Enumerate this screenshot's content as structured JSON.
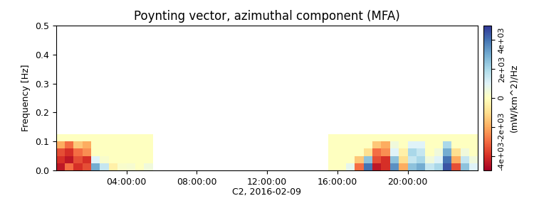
{
  "chart_data": {
    "type": "heatmap",
    "title": "Poynting vector, azimuthal component (MFA)",
    "x_label": "C2, 2016-02-09",
    "y_label": "Frequency [Hz]",
    "colorbar_label": "(mW/km^2)/Hz",
    "x_edges": [
      0,
      0.5,
      1,
      1.5,
      2,
      2.5,
      3,
      3.5,
      4,
      4.5,
      5,
      5.5,
      6,
      6.5,
      7,
      7.5,
      8,
      8.5,
      9,
      9.5,
      10,
      10.5,
      11,
      11.5,
      12,
      12.5,
      13,
      13.5,
      14,
      14.5,
      15,
      15.5,
      16,
      16.5,
      17,
      17.5,
      18,
      18.5,
      19,
      19.5,
      20,
      20.5,
      21,
      21.5,
      22,
      22.5,
      23,
      23.5,
      24
    ],
    "y_edges": [
      0,
      0.025,
      0.05,
      0.075,
      0.1,
      0.125
    ],
    "cells": [
      [
        -4500,
        -3000,
        -4000,
        -3500,
        3000,
        1500,
        -500,
        200,
        300,
        0,
        500,
        null,
        null,
        null,
        null,
        null,
        null,
        null,
        null,
        null,
        null,
        null,
        null,
        null,
        null,
        null,
        null,
        null,
        null,
        null,
        null,
        0,
        0,
        800,
        -3000,
        4000,
        -4500,
        -4000,
        3500,
        -2000,
        2500,
        3000,
        1500,
        2000,
        4500,
        -3500,
        2500,
        1000
      ],
      [
        -4000,
        -4500,
        -3500,
        -4000,
        1000,
        200,
        0,
        0,
        0,
        0,
        0,
        null,
        null,
        null,
        null,
        null,
        null,
        null,
        null,
        null,
        null,
        null,
        null,
        null,
        null,
        null,
        null,
        null,
        null,
        null,
        null,
        0,
        0,
        0,
        -1500,
        2500,
        -3500,
        -4000,
        2500,
        -1000,
        1500,
        2000,
        500,
        1000,
        4000,
        -2000,
        1500,
        500
      ],
      [
        -3500,
        -4000,
        -3000,
        -2500,
        0,
        0,
        0,
        0,
        0,
        0,
        0,
        null,
        null,
        null,
        null,
        null,
        null,
        null,
        null,
        null,
        null,
        null,
        null,
        null,
        null,
        null,
        null,
        null,
        null,
        null,
        null,
        0,
        0,
        0,
        0,
        -1000,
        -3000,
        -2500,
        1000,
        -500,
        2000,
        1500,
        0,
        500,
        3000,
        -1000,
        500,
        0
      ],
      [
        -2000,
        -3000,
        -1500,
        -2000,
        0,
        0,
        0,
        0,
        0,
        0,
        0,
        null,
        null,
        null,
        null,
        null,
        null,
        null,
        null,
        null,
        null,
        null,
        null,
        null,
        null,
        null,
        null,
        null,
        null,
        null,
        null,
        0,
        0,
        0,
        0,
        0,
        -1500,
        -2000,
        500,
        0,
        1000,
        1000,
        0,
        0,
        2000,
        0,
        0,
        0
      ],
      [
        0,
        0,
        0,
        0,
        0,
        0,
        0,
        0,
        0,
        0,
        0,
        null,
        null,
        null,
        null,
        null,
        null,
        null,
        null,
        null,
        null,
        null,
        null,
        null,
        null,
        null,
        null,
        null,
        null,
        null,
        null,
        0,
        0,
        0,
        0,
        0,
        0,
        0,
        0,
        0,
        0,
        0,
        0,
        0,
        0,
        0,
        0,
        0
      ]
    ],
    "xlim": [
      0,
      24
    ],
    "xticks": [
      {
        "value": 4,
        "label": "04:00:00"
      },
      {
        "value": 8,
        "label": "08:00:00"
      },
      {
        "value": 12,
        "label": "12:00:00"
      },
      {
        "value": 16,
        "label": "16:00:00"
      },
      {
        "value": 20,
        "label": "20:00:00"
      }
    ],
    "ylim": [
      0,
      0.5
    ],
    "yticks": [
      {
        "value": 0,
        "label": "0.0"
      },
      0.1,
      0.2,
      0.3,
      0.4,
      0.5
    ],
    "colorbar_range": [
      -5000,
      5000
    ],
    "colorbar_ticks": [
      {
        "value": -4000,
        "label": "-4e+03"
      },
      {
        "value": -2000,
        "label": "-2e+03"
      },
      0,
      {
        "value": 2000,
        "label": "2e+03"
      },
      {
        "value": 4000,
        "label": "4e+03"
      }
    ]
  }
}
